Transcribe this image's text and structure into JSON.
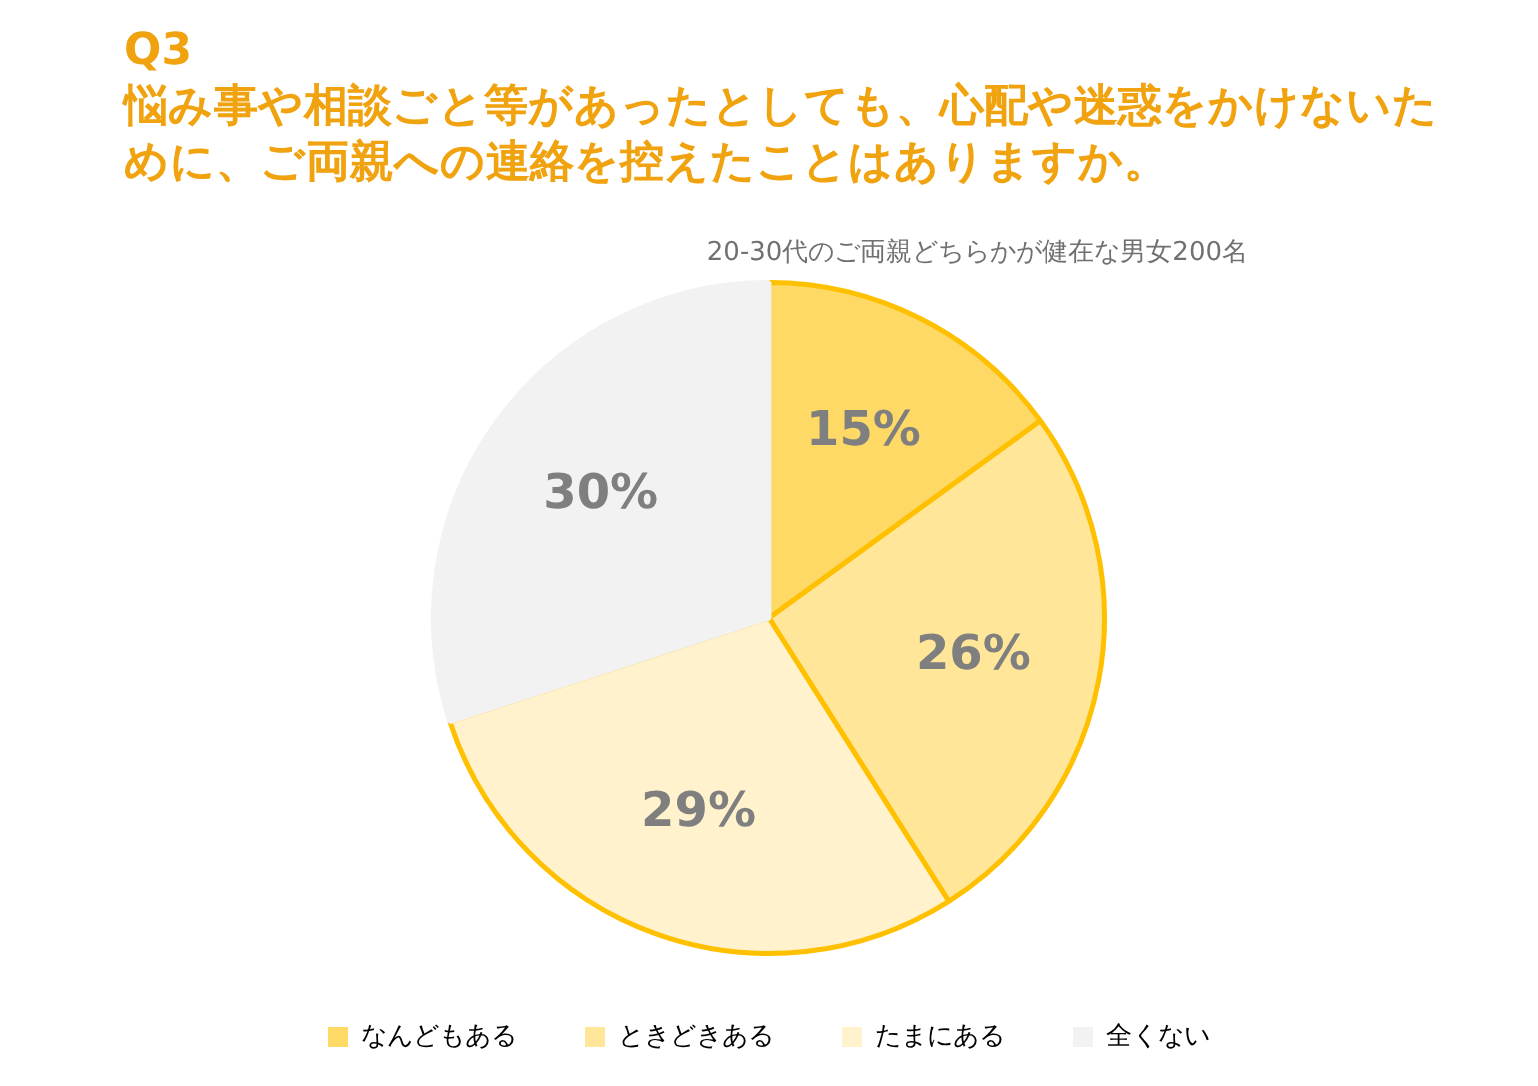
{
  "chart_data": {
    "type": "pie",
    "title": "Q3\n悩み事や相談ごと等があったとしても、心配や迷惑をかけないために、ご両親への連絡を控えたことはありますか。",
    "subtitle": "20-30代のご両親どちらかが健在な男女200名",
    "categories": [
      "なんどもある",
      "ときどきある",
      "たまにある",
      "全くない"
    ],
    "values": [
      15,
      26,
      29,
      30
    ],
    "value_labels": [
      "15%",
      "26%",
      "29%",
      "30%"
    ],
    "colors": [
      "#ffd966",
      "#ffe699",
      "#fff2cc",
      "#f2f2f2"
    ],
    "legend": "bottom"
  }
}
